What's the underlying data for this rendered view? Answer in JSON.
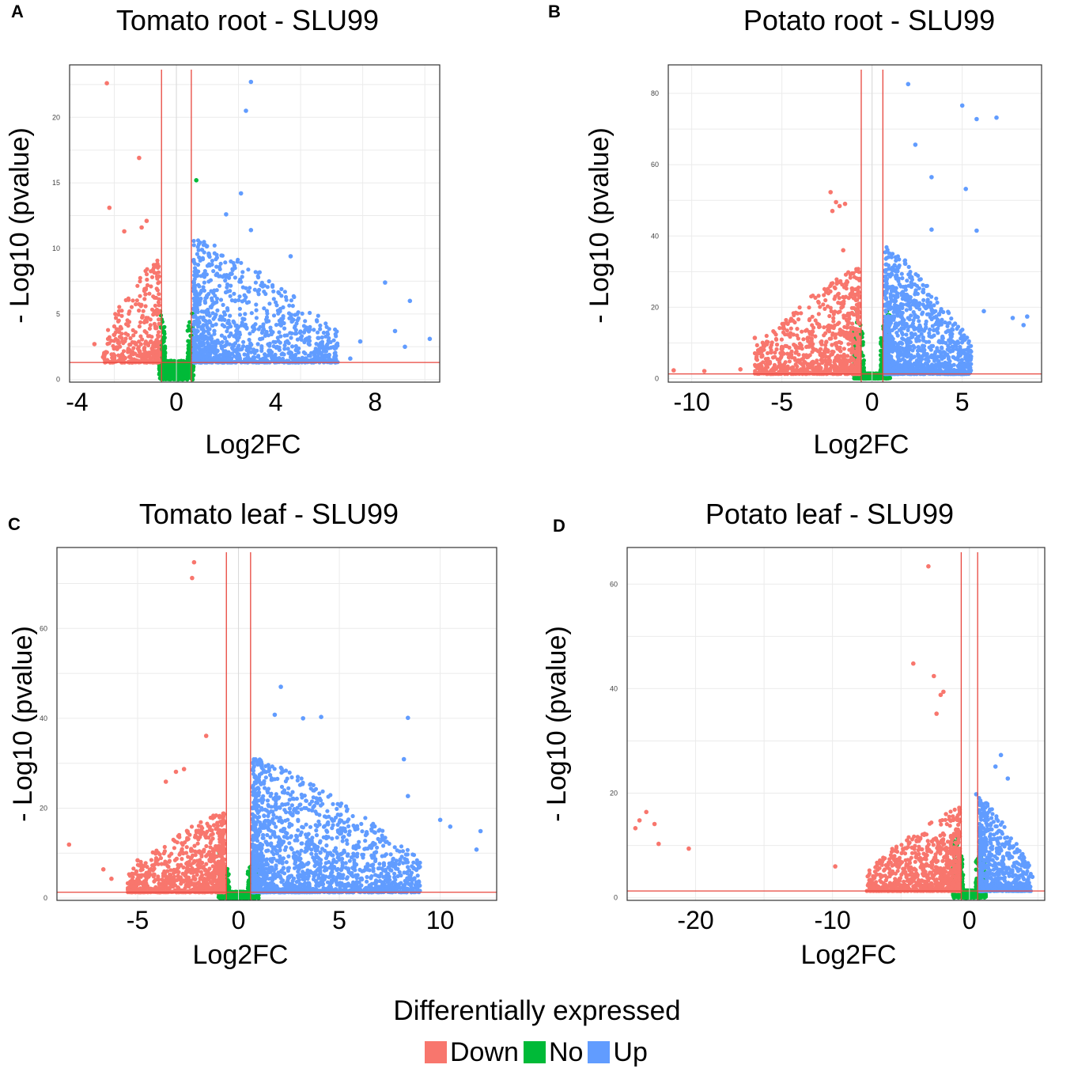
{
  "chart_data": [
    {
      "type": "scatter",
      "letter": "A",
      "title": "Tomato root - SLU99",
      "xlabel": "Log2FC",
      "ylabel": "- Log10 (pvalue)",
      "xlim": [
        -4.3,
        10.6
      ],
      "ylim": [
        -0.2,
        24
      ],
      "xticks": [
        -4,
        0,
        4,
        8
      ],
      "yticks": [
        0,
        5,
        10,
        15,
        20
      ],
      "fc_thresholds": [
        -0.6,
        0.6
      ],
      "p_threshold": 1.3,
      "clouds": {
        "down": {
          "x": [
            -3.0,
            -0.7
          ],
          "ymax": 8,
          "n": 380
        },
        "no": {
          "x": [
            -0.7,
            0.7
          ],
          "ymax": 6,
          "n": 900
        },
        "up": {
          "x": [
            0.7,
            6.5
          ],
          "ymax": 9.5,
          "n": 1100
        }
      },
      "outliers": [
        {
          "x": -2.8,
          "y": 22.6,
          "g": "down"
        },
        {
          "x": -1.5,
          "y": 16.9,
          "g": "down"
        },
        {
          "x": -2.7,
          "y": 13.1,
          "g": "down"
        },
        {
          "x": -1.2,
          "y": 12.1,
          "g": "down"
        },
        {
          "x": -1.4,
          "y": 11.6,
          "g": "down"
        },
        {
          "x": -2.1,
          "y": 11.3,
          "g": "down"
        },
        {
          "x": -3.3,
          "y": 2.7,
          "g": "down"
        },
        {
          "x": 3.0,
          "y": 22.7,
          "g": "up"
        },
        {
          "x": 2.8,
          "y": 20.5,
          "g": "up"
        },
        {
          "x": 2.6,
          "y": 14.2,
          "g": "up"
        },
        {
          "x": 2.0,
          "y": 12.6,
          "g": "up"
        },
        {
          "x": 3.0,
          "y": 11.4,
          "g": "up"
        },
        {
          "x": 0.8,
          "y": 15.2,
          "g": "no"
        },
        {
          "x": 8.4,
          "y": 7.4,
          "g": "up"
        },
        {
          "x": 9.4,
          "y": 6.0,
          "g": "up"
        },
        {
          "x": 8.8,
          "y": 3.7,
          "g": "up"
        },
        {
          "x": 10.2,
          "y": 3.1,
          "g": "up"
        },
        {
          "x": 7.4,
          "y": 2.9,
          "g": "up"
        },
        {
          "x": 9.2,
          "y": 2.5,
          "g": "up"
        },
        {
          "x": 7.0,
          "y": 1.6,
          "g": "up"
        },
        {
          "x": 4.6,
          "y": 9.4,
          "g": "up"
        },
        {
          "x": 1.3,
          "y": 9.6,
          "g": "up"
        }
      ]
    },
    {
      "type": "scatter",
      "letter": "B",
      "title": "Potato root - SLU99",
      "xlabel": "Log2FC",
      "ylabel": "- Log10 (pvalue)",
      "xlim": [
        -11.3,
        9.4
      ],
      "ylim": [
        -1,
        88
      ],
      "xticks": [
        -10,
        -5,
        0,
        5
      ],
      "yticks": [
        0,
        20,
        40,
        60,
        80
      ],
      "fc_thresholds": [
        -0.6,
        0.6
      ],
      "p_threshold": 1.3,
      "clouds": {
        "down": {
          "x": [
            -6.5,
            -0.7
          ],
          "ymax": 30,
          "n": 900
        },
        "no": {
          "x": [
            -1.0,
            1.0
          ],
          "ymax": 22,
          "n": 1100
        },
        "up": {
          "x": [
            0.7,
            5.5
          ],
          "ymax": 36,
          "n": 1300
        }
      },
      "outliers": [
        {
          "x": -2.3,
          "y": 52.3,
          "g": "down"
        },
        {
          "x": -2.0,
          "y": 49.5,
          "g": "down"
        },
        {
          "x": -1.5,
          "y": 49.0,
          "g": "down"
        },
        {
          "x": -1.8,
          "y": 48.4,
          "g": "down"
        },
        {
          "x": -2.2,
          "y": 47.0,
          "g": "down"
        },
        {
          "x": -1.6,
          "y": 36.0,
          "g": "down"
        },
        {
          "x": -11.0,
          "y": 2.3,
          "g": "down"
        },
        {
          "x": -9.3,
          "y": 2.1,
          "g": "down"
        },
        {
          "x": -7.3,
          "y": 2.6,
          "g": "down"
        },
        {
          "x": -6.5,
          "y": 11.4,
          "g": "down"
        },
        {
          "x": 2.0,
          "y": 82.6,
          "g": "up"
        },
        {
          "x": 5.0,
          "y": 76.6,
          "g": "up"
        },
        {
          "x": 5.8,
          "y": 72.8,
          "g": "up"
        },
        {
          "x": 6.9,
          "y": 73.2,
          "g": "up"
        },
        {
          "x": 2.4,
          "y": 65.6,
          "g": "up"
        },
        {
          "x": 3.3,
          "y": 56.5,
          "g": "up"
        },
        {
          "x": 5.2,
          "y": 53.2,
          "g": "up"
        },
        {
          "x": 3.3,
          "y": 41.8,
          "g": "up"
        },
        {
          "x": 5.8,
          "y": 41.5,
          "g": "up"
        },
        {
          "x": 8.6,
          "y": 17.4,
          "g": "up"
        },
        {
          "x": 7.8,
          "y": 17.0,
          "g": "up"
        },
        {
          "x": 6.2,
          "y": 18.9,
          "g": "up"
        },
        {
          "x": 8.4,
          "y": 15.0,
          "g": "up"
        }
      ]
    },
    {
      "type": "scatter",
      "letter": "C",
      "title": "Tomato leaf - SLU99",
      "xlabel": "Log2FC",
      "ylabel": "- Log10 (pvalue)",
      "xlim": [
        -9,
        12.8
      ],
      "ylim": [
        -0.5,
        78
      ],
      "xticks": [
        -5,
        0,
        5,
        10
      ],
      "yticks": [
        0,
        20,
        40,
        60
      ],
      "fc_thresholds": [
        -0.6,
        0.6
      ],
      "p_threshold": 1.3,
      "clouds": {
        "down": {
          "x": [
            -5.5,
            -0.7
          ],
          "ymax": 18,
          "n": 900
        },
        "no": {
          "x": [
            -1.0,
            1.0
          ],
          "ymax": 10,
          "n": 1100
        },
        "up": {
          "x": [
            0.7,
            9.0
          ],
          "ymax": 30,
          "n": 1700
        }
      },
      "outliers": [
        {
          "x": -2.2,
          "y": 74.7,
          "g": "down"
        },
        {
          "x": -2.3,
          "y": 71.2,
          "g": "down"
        },
        {
          "x": -1.6,
          "y": 36.1,
          "g": "down"
        },
        {
          "x": -2.7,
          "y": 28.7,
          "g": "down"
        },
        {
          "x": -3.1,
          "y": 28.1,
          "g": "down"
        },
        {
          "x": -3.6,
          "y": 25.9,
          "g": "down"
        },
        {
          "x": -8.4,
          "y": 11.9,
          "g": "down"
        },
        {
          "x": -6.7,
          "y": 6.4,
          "g": "down"
        },
        {
          "x": -6.3,
          "y": 4.3,
          "g": "down"
        },
        {
          "x": -5.0,
          "y": 8.4,
          "g": "down"
        },
        {
          "x": 2.1,
          "y": 47.0,
          "g": "up"
        },
        {
          "x": 1.8,
          "y": 40.8,
          "g": "up"
        },
        {
          "x": 3.2,
          "y": 40.0,
          "g": "up"
        },
        {
          "x": 4.1,
          "y": 40.3,
          "g": "up"
        },
        {
          "x": 8.4,
          "y": 40.1,
          "g": "up"
        },
        {
          "x": 8.2,
          "y": 30.9,
          "g": "up"
        },
        {
          "x": 8.4,
          "y": 22.7,
          "g": "up"
        },
        {
          "x": 10.0,
          "y": 17.4,
          "g": "up"
        },
        {
          "x": 10.5,
          "y": 15.9,
          "g": "up"
        },
        {
          "x": 12.0,
          "y": 14.9,
          "g": "up"
        },
        {
          "x": 11.8,
          "y": 10.8,
          "g": "up"
        }
      ]
    },
    {
      "type": "scatter",
      "letter": "D",
      "title": "Potato leaf - SLU99",
      "xlabel": "Log2FC",
      "ylabel": "- Log10 (pvalue)",
      "xlim": [
        -25,
        5.5
      ],
      "ylim": [
        -0.5,
        67
      ],
      "xticks": [
        -20,
        -10,
        0
      ],
      "yticks": [
        0,
        20,
        40,
        60
      ],
      "fc_thresholds": [
        -0.6,
        0.6
      ],
      "p_threshold": 1.3,
      "clouds": {
        "down": {
          "x": [
            -7.5,
            -0.7
          ],
          "ymax": 16,
          "n": 900
        },
        "no": {
          "x": [
            -1.2,
            1.2
          ],
          "ymax": 12,
          "n": 1000
        },
        "up": {
          "x": [
            0.7,
            4.5
          ],
          "ymax": 18,
          "n": 700
        }
      },
      "outliers": [
        {
          "x": -3.0,
          "y": 63.4,
          "g": "down"
        },
        {
          "x": -4.1,
          "y": 44.8,
          "g": "down"
        },
        {
          "x": -2.6,
          "y": 42.4,
          "g": "down"
        },
        {
          "x": -1.9,
          "y": 39.4,
          "g": "down"
        },
        {
          "x": -2.1,
          "y": 38.8,
          "g": "down"
        },
        {
          "x": -2.4,
          "y": 35.2,
          "g": "down"
        },
        {
          "x": -23.6,
          "y": 16.4,
          "g": "down"
        },
        {
          "x": -24.4,
          "y": 13.3,
          "g": "down"
        },
        {
          "x": -24.1,
          "y": 14.8,
          "g": "down"
        },
        {
          "x": -23.0,
          "y": 14.1,
          "g": "down"
        },
        {
          "x": -22.7,
          "y": 10.3,
          "g": "down"
        },
        {
          "x": -20.5,
          "y": 9.4,
          "g": "down"
        },
        {
          "x": -9.8,
          "y": 6.0,
          "g": "down"
        },
        {
          "x": 2.3,
          "y": 27.3,
          "g": "up"
        },
        {
          "x": 1.9,
          "y": 25.1,
          "g": "up"
        },
        {
          "x": 2.8,
          "y": 22.8,
          "g": "up"
        },
        {
          "x": 0.5,
          "y": 19.8,
          "g": "up"
        },
        {
          "x": 4.6,
          "y": 4.0,
          "g": "up"
        }
      ]
    }
  ],
  "legend": {
    "title": "Differentially expressed",
    "items": [
      {
        "key": "down",
        "label": "Down",
        "color": "#F8766D"
      },
      {
        "key": "no",
        "label": "No",
        "color": "#00BA38"
      },
      {
        "key": "up",
        "label": "Up",
        "color": "#619CFF"
      }
    ]
  }
}
